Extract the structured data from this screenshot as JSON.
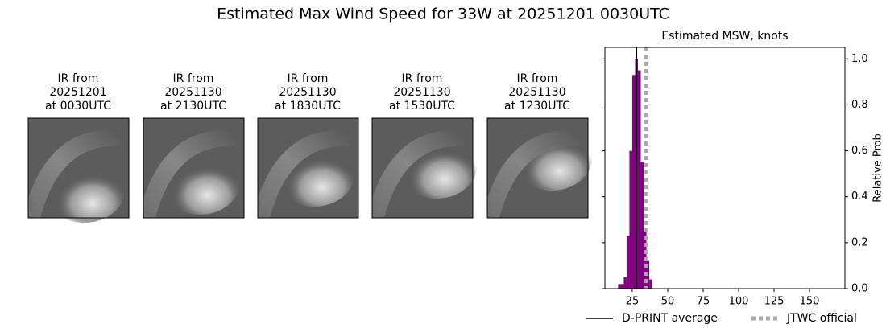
{
  "title": "Estimated Max Wind Speed for 33W at 20251201 0030UTC",
  "panels": [
    {
      "lines": [
        "IR from",
        "20251201",
        "at 0030UTC"
      ]
    },
    {
      "lines": [
        "IR from",
        "20251130",
        "at 2130UTC"
      ]
    },
    {
      "lines": [
        "IR from",
        "20251130",
        "at 1830UTC"
      ]
    },
    {
      "lines": [
        "IR from",
        "20251130",
        "at 1530UTC"
      ]
    },
    {
      "lines": [
        "IR from",
        "20251130",
        "at 1230UTC"
      ]
    }
  ],
  "chart_data": {
    "type": "histogram",
    "title": "Estimated MSW, knots",
    "bins": [
      15,
      17,
      19,
      21,
      23,
      25,
      27,
      29,
      31,
      33,
      35,
      37,
      39
    ],
    "values": [
      0.02,
      0.02,
      0.05,
      0.23,
      0.6,
      0.93,
      1.0,
      0.95,
      0.55,
      0.25,
      0.12,
      0.04
    ],
    "color": "#800080",
    "xlim": [
      5.7,
      175
    ],
    "xticks": [
      25,
      50,
      75,
      100,
      125,
      150
    ],
    "ylim": [
      0,
      1.05
    ],
    "yticks": [
      {
        "value": 0,
        "label": "0.0"
      },
      {
        "value": 0.2,
        "label": "0.2"
      },
      {
        "value": 0.4,
        "label": "0.4"
      },
      {
        "value": 0.6,
        "label": "0.6"
      },
      {
        "value": 0.8,
        "label": "0.8"
      },
      {
        "value": 1,
        "label": "1.0"
      }
    ],
    "y_label": "Relative Prob",
    "y_axis_side": "right",
    "lines": [
      {
        "name": "D-PRINT average",
        "value": 28,
        "color": "#000000",
        "style": "solid"
      },
      {
        "name": "JTWC official",
        "value": 35,
        "color": "#a9a9a9",
        "style": "dotted"
      }
    ],
    "legend": "lower center"
  }
}
